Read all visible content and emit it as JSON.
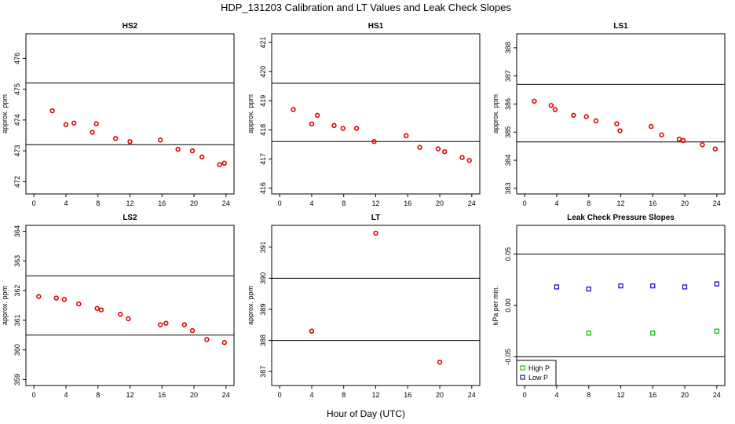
{
  "figure": {
    "title": "HDP_131203  Calibration and LT Values and Leak Check Slopes",
    "xlabel": "Hour of Day (UTC)"
  },
  "chart_data": [
    {
      "type": "scatter",
      "title": "HS2",
      "ylabel": "approx. ppm",
      "xlim": [
        -1,
        25
      ],
      "ylim": [
        471.6,
        476.8
      ],
      "xticks": [
        0,
        4,
        8,
        12,
        16,
        20,
        24
      ],
      "yticks": [
        472,
        473,
        474,
        475,
        476
      ],
      "hlines": [
        475.2,
        473.2
      ],
      "series": [
        {
          "marker": "circle",
          "color": "#e00000",
          "x": [
            2.3,
            4.0,
            5.0,
            7.3,
            7.8,
            10.2,
            12.0,
            15.8,
            18.0,
            19.8,
            21.0,
            23.2,
            23.8
          ],
          "y": [
            474.3,
            473.85,
            473.9,
            473.6,
            473.88,
            473.4,
            473.3,
            473.35,
            473.05,
            473.0,
            472.8,
            472.55,
            472.6
          ]
        }
      ]
    },
    {
      "type": "scatter",
      "title": "HS1",
      "ylabel": "approx. ppm",
      "xlim": [
        -1,
        25
      ],
      "ylim": [
        415.8,
        421.3
      ],
      "xticks": [
        0,
        4,
        8,
        12,
        16,
        20,
        24
      ],
      "yticks": [
        416,
        417,
        418,
        419,
        420,
        421
      ],
      "hlines": [
        419.6,
        417.6
      ],
      "series": [
        {
          "marker": "circle",
          "color": "#e00000",
          "x": [
            1.7,
            4.0,
            4.7,
            6.8,
            7.9,
            9.6,
            11.8,
            15.8,
            17.5,
            19.8,
            20.6,
            22.8,
            23.7
          ],
          "y": [
            418.7,
            418.2,
            418.5,
            418.15,
            418.05,
            418.05,
            417.6,
            417.8,
            417.4,
            417.35,
            417.25,
            417.05,
            416.95
          ]
        }
      ]
    },
    {
      "type": "scatter",
      "title": "LS1",
      "ylabel": "approx. ppm",
      "xlim": [
        -1,
        25
      ],
      "ylim": [
        382.8,
        388.5
      ],
      "xticks": [
        0,
        4,
        8,
        12,
        16,
        20,
        24
      ],
      "yticks": [
        383,
        384,
        385,
        386,
        387,
        388
      ],
      "hlines": [
        386.7,
        384.65
      ],
      "series": [
        {
          "marker": "circle",
          "color": "#e00000",
          "x": [
            1.2,
            3.3,
            3.8,
            6.1,
            7.7,
            8.9,
            11.5,
            11.9,
            15.8,
            17.1,
            19.3,
            19.8,
            22.2,
            23.8
          ],
          "y": [
            386.1,
            385.95,
            385.8,
            385.6,
            385.55,
            385.4,
            385.3,
            385.05,
            385.2,
            384.9,
            384.75,
            384.7,
            384.55,
            384.4
          ]
        }
      ]
    },
    {
      "type": "scatter",
      "title": "LS2",
      "ylabel": "approx. ppm",
      "xlim": [
        -1,
        25
      ],
      "ylim": [
        358.8,
        364.2
      ],
      "xticks": [
        0,
        4,
        8,
        12,
        16,
        20,
        24
      ],
      "yticks": [
        359,
        360,
        361,
        362,
        363,
        364
      ],
      "hlines": [
        362.5,
        360.5
      ],
      "series": [
        {
          "marker": "circle",
          "color": "#e00000",
          "x": [
            0.6,
            2.8,
            3.8,
            5.6,
            7.9,
            8.4,
            10.8,
            11.8,
            15.8,
            16.5,
            18.8,
            19.8,
            21.6,
            23.8
          ],
          "y": [
            361.8,
            361.75,
            361.7,
            361.55,
            361.4,
            361.35,
            361.2,
            361.05,
            360.85,
            360.9,
            360.85,
            360.65,
            360.35,
            360.25
          ]
        }
      ]
    },
    {
      "type": "scatter",
      "title": "LT",
      "ylabel": "approx. ppm",
      "xlim": [
        -1,
        25
      ],
      "ylim": [
        386.55,
        391.7
      ],
      "xticks": [
        0,
        4,
        8,
        12,
        16,
        20,
        24
      ],
      "yticks": [
        387,
        388,
        389,
        390,
        391
      ],
      "hlines": [
        390.0,
        388.0
      ],
      "series": [
        {
          "marker": "circle",
          "color": "#e00000",
          "x": [
            4.0,
            12.0,
            20.0
          ],
          "y": [
            388.3,
            391.45,
            387.3
          ]
        }
      ]
    },
    {
      "type": "scatter",
      "title": "Leak Check Pressure Slopes",
      "ylabel": "kPa per min.",
      "xlim": [
        -1,
        25
      ],
      "ylim": [
        -0.078,
        0.078
      ],
      "xticks": [
        0,
        4,
        8,
        12,
        16,
        20,
        24
      ],
      "yticks": [
        -0.05,
        0.0,
        0.05
      ],
      "ytick_labels": [
        "-0.05",
        "0.00",
        "0.05"
      ],
      "hlines": [
        0.05,
        -0.05
      ],
      "legend": "bottom-left",
      "series": [
        {
          "name": "High P",
          "marker": "square",
          "color": "#00bb00",
          "x": [
            8,
            16,
            24
          ],
          "y": [
            -0.027,
            -0.027,
            -0.025
          ]
        },
        {
          "name": "Low P",
          "marker": "square",
          "color": "#0000cc",
          "x": [
            4,
            8,
            12,
            16,
            20,
            24
          ],
          "y": [
            0.018,
            0.016,
            0.019,
            0.019,
            0.018,
            0.021
          ]
        }
      ]
    }
  ]
}
